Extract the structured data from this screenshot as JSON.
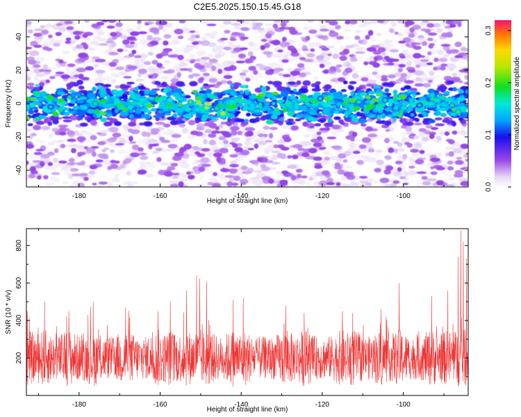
{
  "title": "C2E5.2025.150.15.45.G18",
  "chart_data": [
    {
      "type": "heatmap",
      "xlabel": "Height of straight line (km)",
      "ylabel": "Frequency (Hz)",
      "xlim": [
        -193,
        -84
      ],
      "ylim": [
        -50,
        50
      ],
      "xticks": [
        -180,
        -160,
        -140,
        -120,
        -100
      ],
      "yticks": [
        -40,
        -20,
        0,
        20,
        40
      ],
      "band": {
        "center_hz": 0,
        "half_width_hz": 8
      },
      "hotspots": [
        {
          "x": -150.5,
          "y": 0.5,
          "v": 0.28
        },
        {
          "x": -148.5,
          "y": -2.5,
          "v": 0.26
        },
        {
          "x": -144.5,
          "y": -6,
          "v": 0.27
        },
        {
          "x": -152.5,
          "y": 1,
          "v": 0.22
        },
        {
          "x": -146,
          "y": -3,
          "v": 0.2
        },
        {
          "x": -176,
          "y": 0,
          "v": 0.2
        },
        {
          "x": -111,
          "y": 1,
          "v": 0.2
        },
        {
          "x": -86.5,
          "y": -5,
          "v": 0.22
        },
        {
          "x": -88,
          "y": -1,
          "v": 0.19
        },
        {
          "x": -120.5,
          "y": 3,
          "v": 0.17
        },
        {
          "x": -132,
          "y": 0,
          "v": 0.17
        },
        {
          "x": -187,
          "y": -2,
          "v": 0.16
        },
        {
          "x": -104.5,
          "y": 2,
          "v": 0.18
        },
        {
          "x": -96,
          "y": -1,
          "v": 0.16
        }
      ],
      "colorbar": {
        "label": "Normalized spectral amplitude",
        "range": [
          0,
          0.32
        ],
        "ticks": [
          0.0,
          0.1,
          0.2,
          0.3
        ],
        "tick_labels": [
          "0.0",
          "0.1",
          "0.2",
          "0.3"
        ]
      }
    },
    {
      "type": "line",
      "xlabel": "Height of straight line (km)",
      "ylabel": "SNR (10 * v/v)",
      "xlim": [
        -193,
        -84
      ],
      "ylim": [
        0,
        890
      ],
      "xticks": [
        -180,
        -160,
        -140,
        -120,
        -100
      ],
      "yticks": [
        200,
        400,
        600,
        800
      ],
      "color": "#ee3333",
      "baseline_mean": 200,
      "baseline_spread": 230,
      "peaks": [
        {
          "x": -192.8,
          "y": 450
        },
        {
          "x": -188.5,
          "y": 500
        },
        {
          "x": -182.5,
          "y": 450
        },
        {
          "x": -176.5,
          "y": 500
        },
        {
          "x": -168.5,
          "y": 470
        },
        {
          "x": -160.5,
          "y": 450
        },
        {
          "x": -157.5,
          "y": 500
        },
        {
          "x": -153.5,
          "y": 560
        },
        {
          "x": -151,
          "y": 640
        },
        {
          "x": -150.2,
          "y": 625
        },
        {
          "x": -148.5,
          "y": 610
        },
        {
          "x": -142,
          "y": 510
        },
        {
          "x": -139.5,
          "y": 520
        },
        {
          "x": -129,
          "y": 480
        },
        {
          "x": -124.5,
          "y": 440
        },
        {
          "x": -115,
          "y": 450
        },
        {
          "x": -112.5,
          "y": 440
        },
        {
          "x": -105.5,
          "y": 460
        },
        {
          "x": -101,
          "y": 600
        },
        {
          "x": -93,
          "y": 530
        },
        {
          "x": -89,
          "y": 560
        },
        {
          "x": -86.5,
          "y": 740
        },
        {
          "x": -85.8,
          "y": 880
        },
        {
          "x": -85.2,
          "y": 820
        },
        {
          "x": -84.4,
          "y": 730
        }
      ]
    }
  ]
}
